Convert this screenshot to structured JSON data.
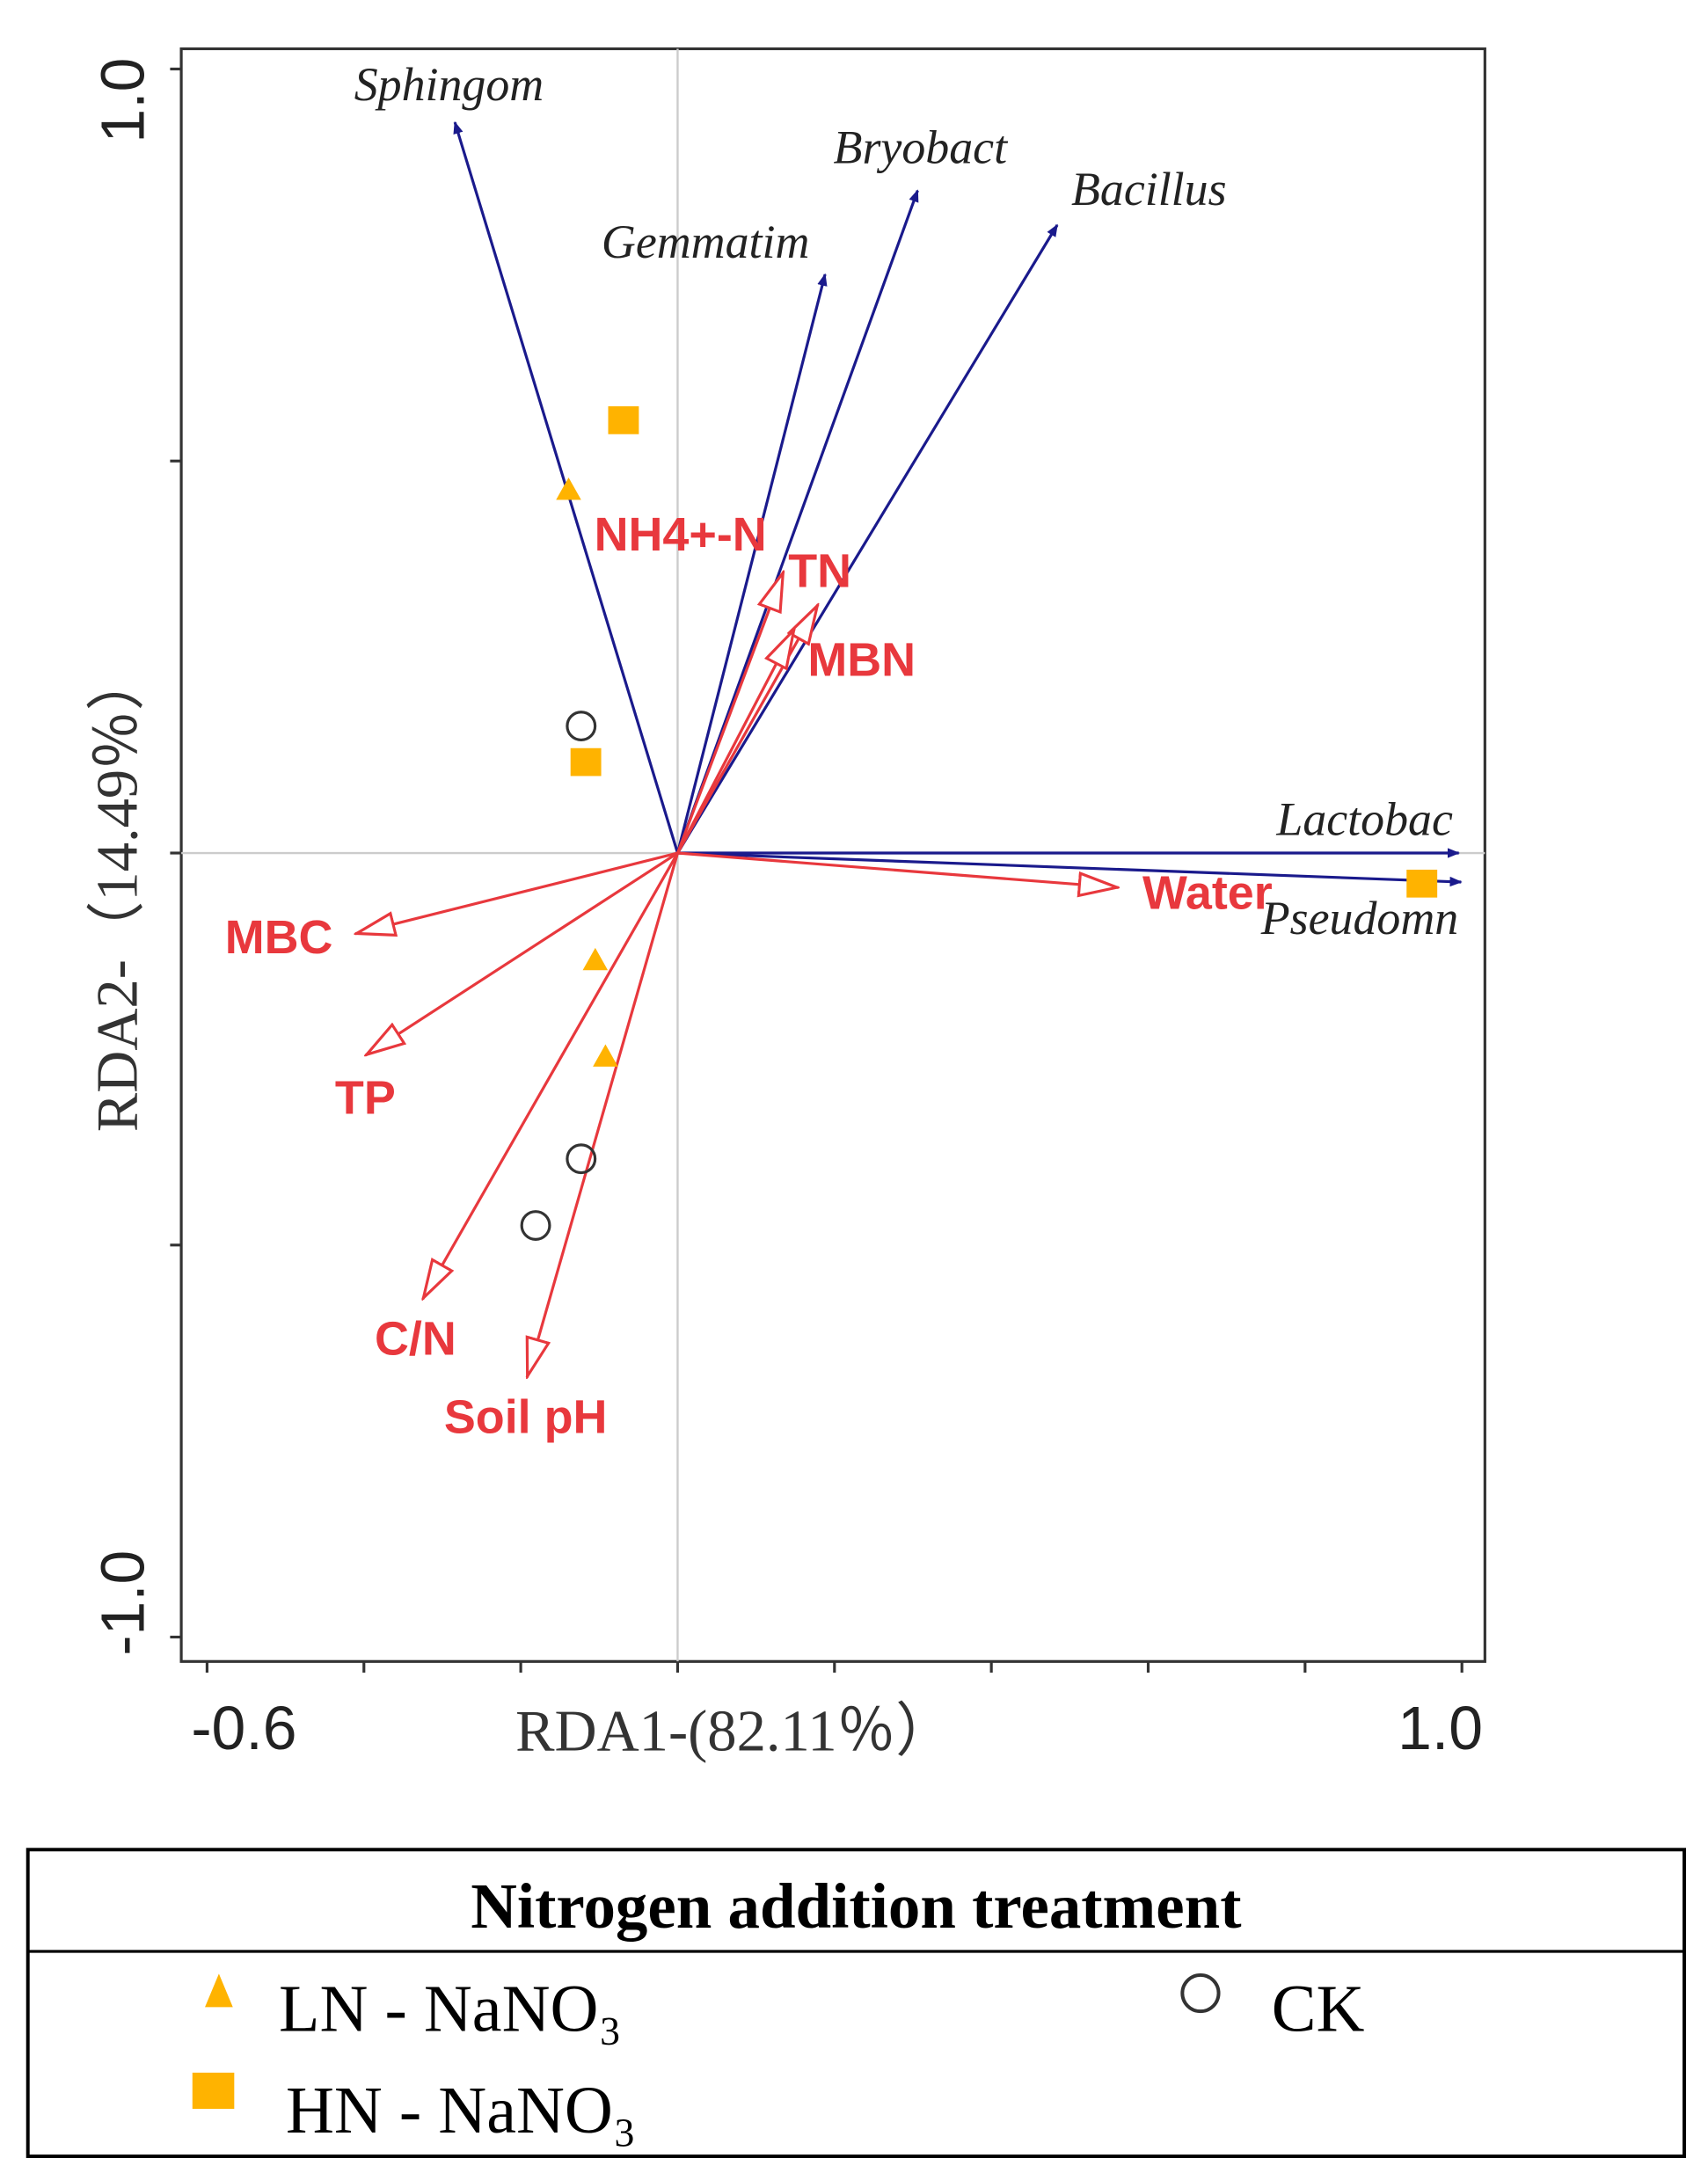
{
  "chart_data": {
    "type": "scatter",
    "subtype": "RDA biplot",
    "xlabel": "RDA1-(82.11％）",
    "ylabel": "RDA2-（14.49％）",
    "xlim": [
      -0.6,
      1.0
    ],
    "ylim": [
      -1.0,
      1.0
    ],
    "x_tick_labels": [
      "-0.6",
      "1.0"
    ],
    "y_tick_labels": [
      "1.0",
      "-1.0"
    ],
    "x_ticks": [
      -0.6,
      -0.4,
      -0.2,
      0,
      0.2,
      0.4,
      0.6,
      0.8,
      1.0
    ],
    "y_ticks": [
      -1.0,
      -0.5,
      0,
      0.5,
      1.0
    ],
    "species_arrows": [
      {
        "name": "Sphingom",
        "x": -0.284,
        "y": 0.932
      },
      {
        "name": "Gemmatim",
        "x": 0.188,
        "y": 0.738
      },
      {
        "name": "Bryobact",
        "x": 0.306,
        "y": 0.845
      },
      {
        "name": "Bacillus",
        "x": 0.484,
        "y": 0.801
      },
      {
        "name": "Lactobac",
        "x": 0.996,
        "y": 0.0
      },
      {
        "name": "Pseudomn",
        "x": 0.999,
        "y": -0.037
      }
    ],
    "environment_arrows": [
      {
        "name": "NH4+-N",
        "x": 0.135,
        "y": 0.359
      },
      {
        "name": "TN",
        "x": 0.179,
        "y": 0.317
      },
      {
        "name": "MBN",
        "x": 0.149,
        "y": 0.286
      },
      {
        "name": "Water",
        "x": 0.562,
        "y": -0.044
      },
      {
        "name": "MBC",
        "x": -0.411,
        "y": -0.103
      },
      {
        "name": "TP",
        "x": -0.398,
        "y": -0.258
      },
      {
        "name": "C/N",
        "x": -0.325,
        "y": -0.569
      },
      {
        "name": "Soil pH",
        "x": -0.192,
        "y": -0.669
      }
    ],
    "series": [
      {
        "name": "LN - NaNO₃",
        "marker": "triangle",
        "color": "#FFB300",
        "points": [
          [
            -0.139,
            0.463
          ],
          [
            -0.105,
            -0.137
          ],
          [
            -0.092,
            -0.26
          ]
        ]
      },
      {
        "name": "HN - NaNO₃",
        "marker": "square",
        "color": "#FFB300",
        "points": [
          [
            -0.069,
            0.552
          ],
          [
            -0.117,
            0.116
          ],
          [
            0.949,
            -0.039
          ]
        ]
      },
      {
        "name": "CK",
        "marker": "circle",
        "color": "#333333",
        "points": [
          [
            -0.123,
            0.162
          ],
          [
            -0.123,
            -0.39
          ],
          [
            -0.181,
            -0.475
          ]
        ]
      }
    ],
    "legend": {
      "title": "Nitrogen addition treatment",
      "placement": "bottom"
    },
    "colors": {
      "species": "#1a1a8c",
      "environment": "#e8383d",
      "marker": "#FFB300"
    }
  }
}
